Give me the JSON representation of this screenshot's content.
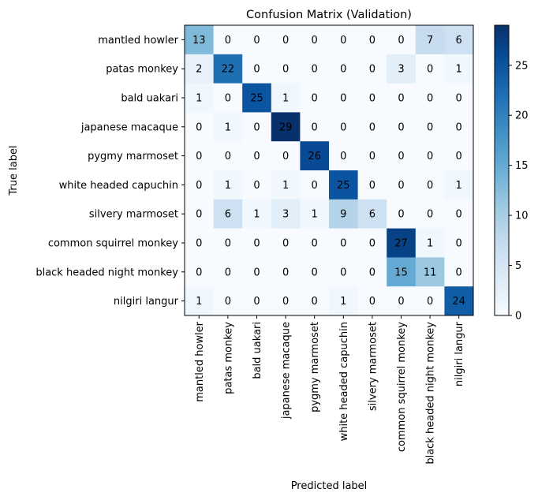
{
  "chart_data": {
    "type": "heatmap",
    "title": "Confusion Matrix (Validation)",
    "xlabel": "Predicted label",
    "ylabel": "True label",
    "labels": [
      "mantled howler",
      "patas monkey",
      "bald uakari",
      "japanese macaque",
      "pygmy marmoset",
      "white headed capuchin",
      "silvery marmoset",
      "common squirrel monkey",
      "black headed night monkey",
      "nilgiri langur"
    ],
    "matrix": [
      [
        13,
        0,
        0,
        0,
        0,
        0,
        0,
        0,
        7,
        6
      ],
      [
        2,
        22,
        0,
        0,
        0,
        0,
        0,
        3,
        0,
        1
      ],
      [
        1,
        0,
        25,
        1,
        0,
        0,
        0,
        0,
        0,
        0
      ],
      [
        0,
        1,
        0,
        29,
        0,
        0,
        0,
        0,
        0,
        0
      ],
      [
        0,
        0,
        0,
        0,
        26,
        0,
        0,
        0,
        0,
        0
      ],
      [
        0,
        1,
        0,
        1,
        0,
        25,
        0,
        0,
        0,
        1
      ],
      [
        0,
        6,
        1,
        3,
        1,
        9,
        6,
        0,
        0,
        0
      ],
      [
        0,
        0,
        0,
        0,
        0,
        0,
        0,
        27,
        1,
        0
      ],
      [
        0,
        0,
        0,
        0,
        0,
        0,
        0,
        15,
        11,
        0
      ],
      [
        1,
        0,
        0,
        0,
        0,
        1,
        0,
        0,
        0,
        24
      ]
    ],
    "colormap": "Blues",
    "vmin": 0,
    "vmax": 29,
    "colorbar_ticks": [
      0,
      5,
      10,
      15,
      20,
      25
    ],
    "grid": false,
    "legend": "colorbar-right"
  }
}
